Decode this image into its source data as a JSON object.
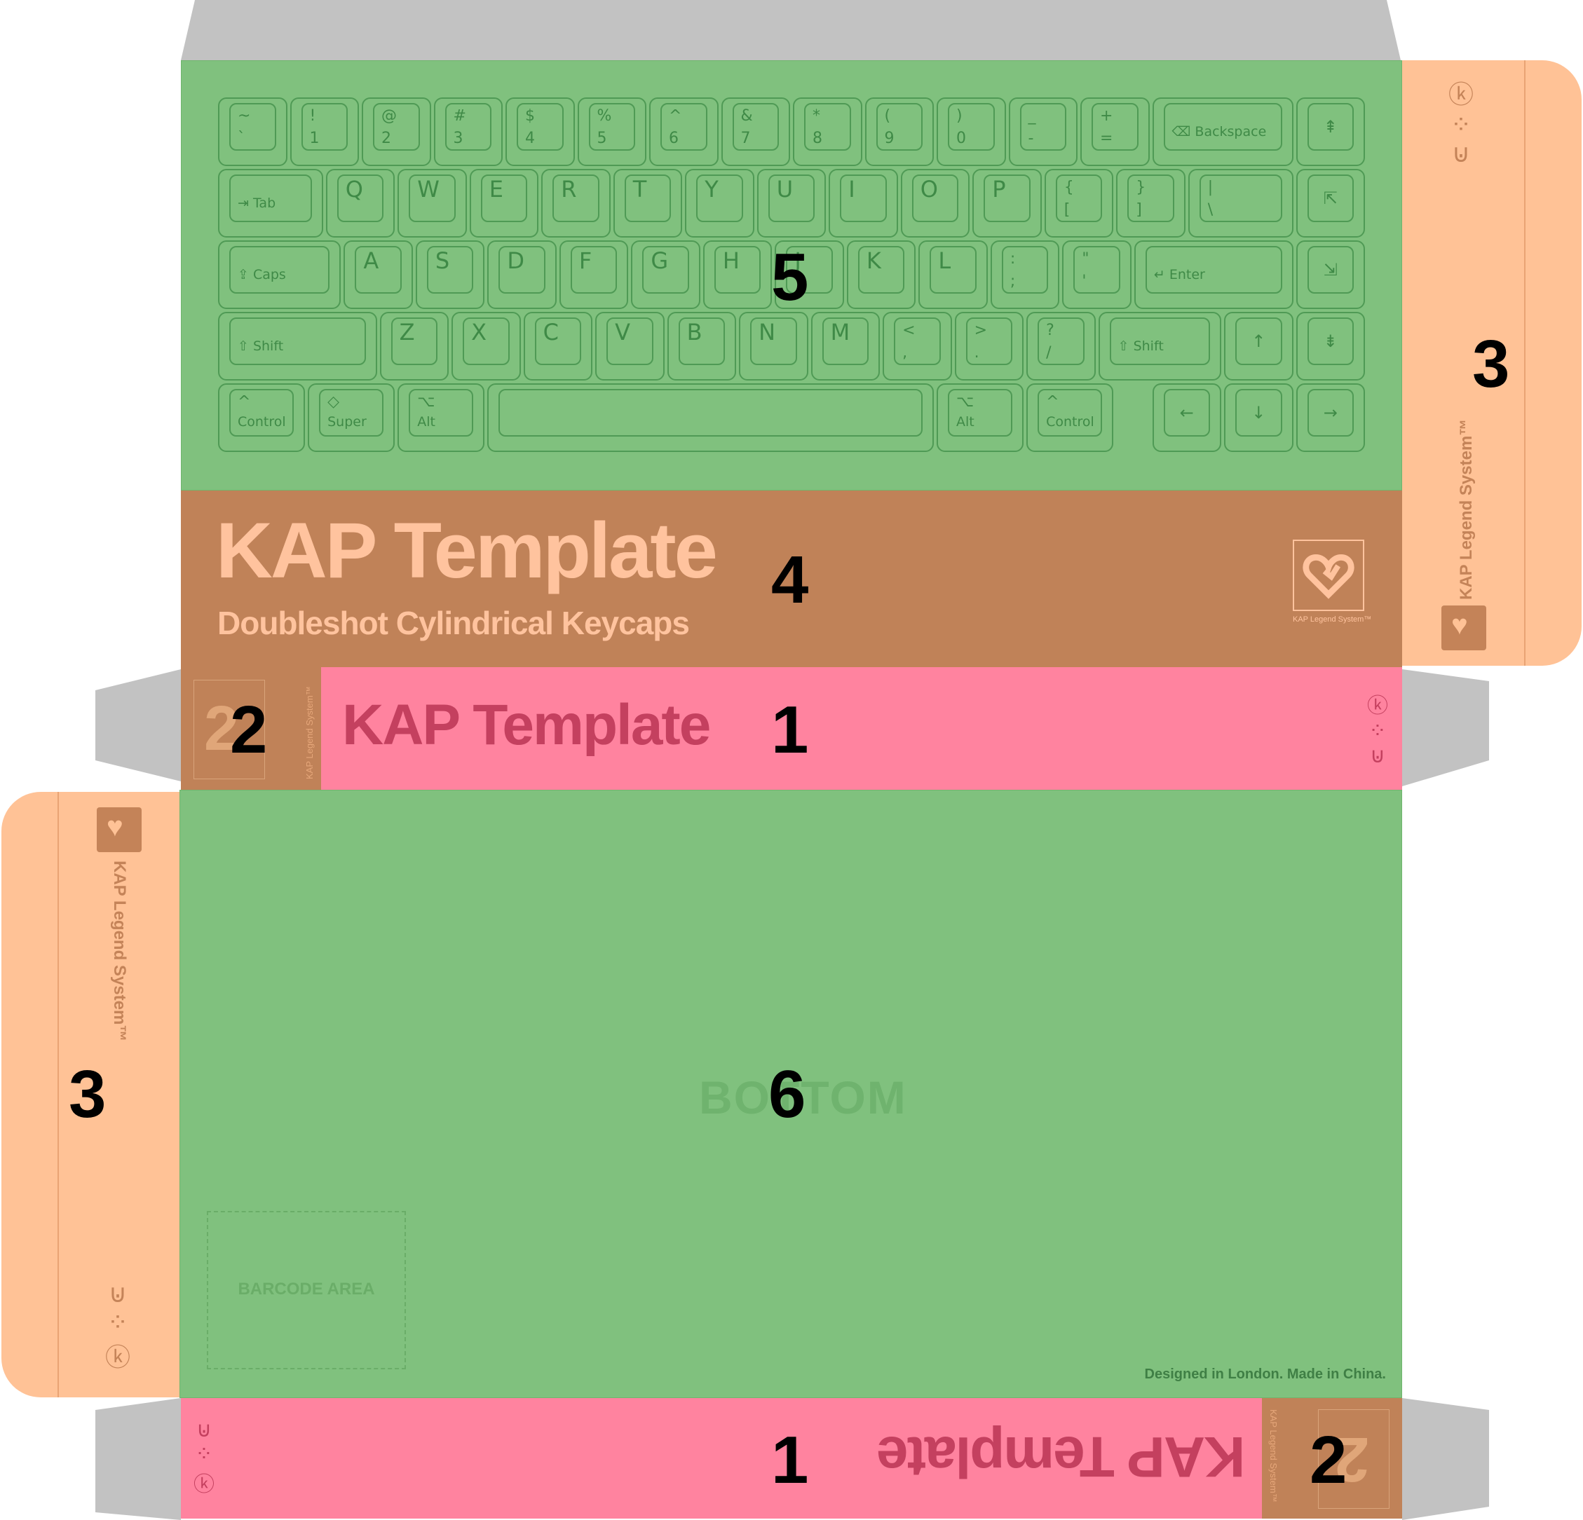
{
  "keyboard": {
    "rows": [
      [
        {
          "top": "~",
          "bot": "`"
        },
        {
          "top": "!",
          "bot": "1"
        },
        {
          "top": "@",
          "bot": "2"
        },
        {
          "top": "#",
          "bot": "3"
        },
        {
          "top": "$",
          "bot": "4"
        },
        {
          "top": "%",
          "bot": "5"
        },
        {
          "top": "^",
          "bot": "6"
        },
        {
          "top": "&",
          "bot": "7"
        },
        {
          "top": "*",
          "bot": "8"
        },
        {
          "top": "(",
          "bot": "9"
        },
        {
          "top": ")",
          "bot": "0"
        },
        {
          "top": "_",
          "bot": "-"
        },
        {
          "top": "+",
          "bot": "="
        },
        {
          "mid": "Backspace",
          "icon": "⌫"
        },
        {
          "icon": "⇞"
        }
      ],
      [
        {
          "mid": "Tab",
          "icon": "⇥"
        },
        {
          "big": "Q"
        },
        {
          "big": "W"
        },
        {
          "big": "E"
        },
        {
          "big": "R"
        },
        {
          "big": "T"
        },
        {
          "big": "Y"
        },
        {
          "big": "U"
        },
        {
          "big": "I"
        },
        {
          "big": "O"
        },
        {
          "big": "P"
        },
        {
          "top": "{",
          "bot": "["
        },
        {
          "top": "}",
          "bot": "]"
        },
        {
          "top": "|",
          "bot": "\\"
        },
        {
          "icon": "⇱"
        }
      ],
      [
        {
          "mid": "Caps",
          "icon": "⇪"
        },
        {
          "big": "A"
        },
        {
          "big": "S"
        },
        {
          "big": "D"
        },
        {
          "big": "F"
        },
        {
          "big": "G"
        },
        {
          "big": "H"
        },
        {
          "big": "J"
        },
        {
          "big": "K"
        },
        {
          "big": "L"
        },
        {
          "top": ":",
          "bot": ";"
        },
        {
          "top": "\"",
          "bot": "'"
        },
        {
          "mid": "Enter",
          "icon": "↵"
        },
        {
          "icon": "⇲"
        }
      ],
      [
        {
          "mid": "Shift",
          "icon": "⇧"
        },
        {
          "big": "Z"
        },
        {
          "big": "X"
        },
        {
          "big": "C"
        },
        {
          "big": "V"
        },
        {
          "big": "B"
        },
        {
          "big": "N"
        },
        {
          "big": "M"
        },
        {
          "top": "<",
          "bot": ","
        },
        {
          "top": ">",
          "bot": "."
        },
        {
          "top": "?",
          "bot": "/"
        },
        {
          "mid": "Shift",
          "icon": "⇧"
        },
        {
          "icon": "↑"
        },
        {
          "icon": "⇟"
        }
      ],
      [
        {
          "mod": "Control",
          "icon": "^"
        },
        {
          "mod": "Super",
          "icon": "◇"
        },
        {
          "mod": "Alt",
          "icon": "⌥"
        },
        {
          "space": true
        },
        {
          "mod": "Alt",
          "icon": "⌥"
        },
        {
          "mod": "Control",
          "icon": "^"
        },
        {
          "icon": "←"
        },
        {
          "icon": "↓"
        },
        {
          "icon": "→"
        }
      ]
    ]
  },
  "front": {
    "title": "KAP Template",
    "subtitle": "Doubleshot Cylindrical Keycaps",
    "logo_label": "KAP Legend System™"
  },
  "top_strip": {
    "title": "KAP Template",
    "side_label": "KAP Legend System™"
  },
  "bottom_strip": {
    "title": "KAP Template",
    "side_label": "KAP Legend System™"
  },
  "side_flaps": {
    "label": "KAP Legend System™"
  },
  "bottom_panel": {
    "watermark": "BOTTOM",
    "barcode_label": "BARCODE AREA",
    "footer": "Designed in London. Made in China."
  },
  "panel_numbers": {
    "n1a": "1",
    "n1b": "1",
    "n2a": "2",
    "n2b": "2",
    "n3a": "3",
    "n3b": "3",
    "n4": "4",
    "n5": "5",
    "n6": "6"
  },
  "colors": {
    "green": "#80c17e",
    "brown": "#c08258",
    "pink": "#ff839f",
    "peach": "#ffc296",
    "grey": "#c2c2c2",
    "key_line": "#4f9a55",
    "title_peach": "#ffc39e",
    "pink_title": "#c4405f"
  }
}
